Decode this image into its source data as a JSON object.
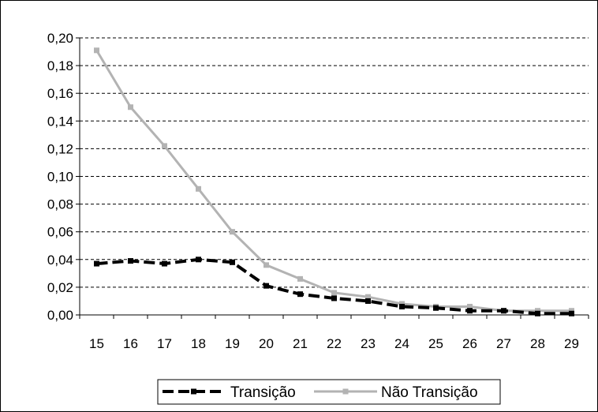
{
  "chart_data": {
    "type": "line",
    "title": "",
    "xlabel": "",
    "ylabel": "",
    "x": [
      "15",
      "16",
      "17",
      "18",
      "19",
      "20",
      "21",
      "22",
      "23",
      "24",
      "25",
      "26",
      "27",
      "28",
      "29"
    ],
    "ylim": [
      0,
      0.2
    ],
    "yticks": [
      "0,00",
      "0,02",
      "0,04",
      "0,06",
      "0,08",
      "0,10",
      "0,12",
      "0,14",
      "0,16",
      "0,18",
      "0,20"
    ],
    "grid": true,
    "legend_position": "bottom",
    "series": [
      {
        "name": "Transição",
        "color": "#000000",
        "line_style": "dashed",
        "marker": "square",
        "values": [
          0.037,
          0.039,
          0.037,
          0.04,
          0.038,
          0.021,
          0.015,
          0.012,
          0.01,
          0.006,
          0.005,
          0.003,
          0.003,
          0.001,
          0.001
        ]
      },
      {
        "name": "Não Transição",
        "color": "#b3b3b3",
        "line_style": "solid",
        "marker": "square",
        "values": [
          0.191,
          0.15,
          0.122,
          0.091,
          0.06,
          0.036,
          0.026,
          0.016,
          0.013,
          0.008,
          0.006,
          0.006,
          0.003,
          0.003,
          0.003
        ]
      }
    ]
  }
}
